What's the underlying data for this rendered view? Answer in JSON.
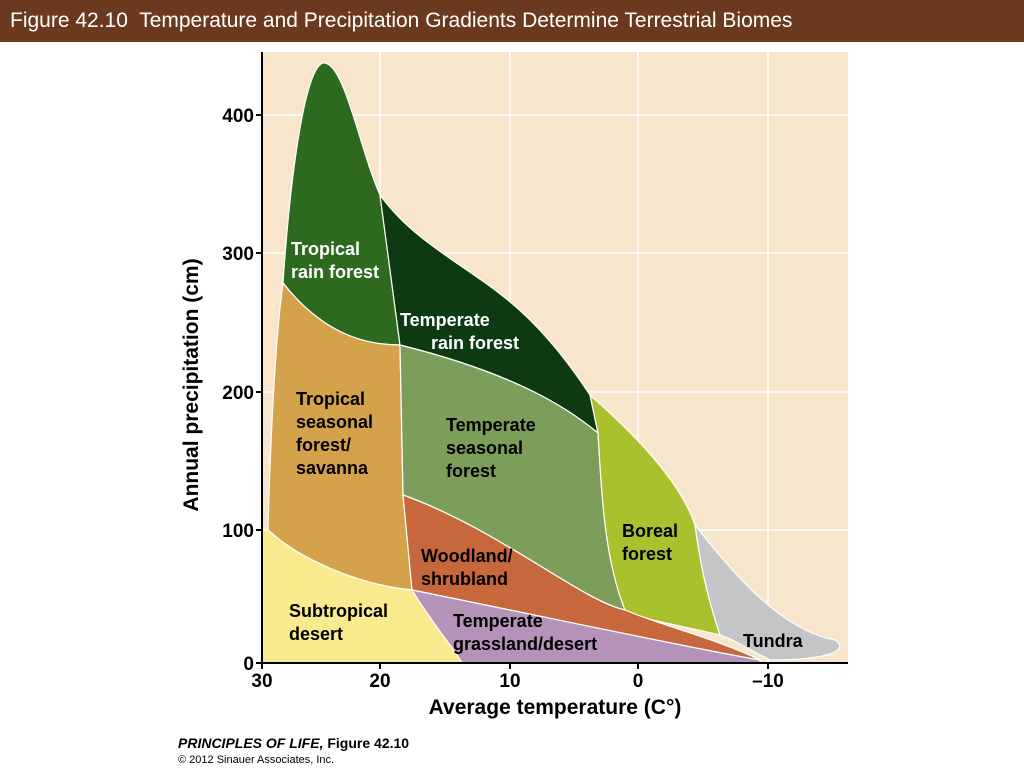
{
  "header": {
    "title": "Figure 42.10  Temperature and Precipitation Gradients Determine Terrestrial Biomes"
  },
  "figure": {
    "x_axis": {
      "label": "Average temperature (C°)",
      "ticks": [
        "30",
        "20",
        "10",
        "0",
        "–10"
      ]
    },
    "y_axis": {
      "label": "Annual precipitation (cm)",
      "ticks": [
        "0",
        "100",
        "200",
        "300",
        "400"
      ]
    },
    "biomes": [
      {
        "lines": [
          "Tropical",
          "rain forest"
        ]
      },
      {
        "lines": [
          "Temperate",
          "rain forest"
        ]
      },
      {
        "lines": [
          "Tropical",
          "seasonal",
          "forest/",
          "savanna"
        ]
      },
      {
        "lines": [
          "Temperate",
          "seasonal",
          "forest"
        ]
      },
      {
        "lines": [
          "Boreal",
          "forest"
        ]
      },
      {
        "lines": [
          "Woodland/",
          "shrubland"
        ]
      },
      {
        "lines": [
          "Subtropical",
          "desert"
        ]
      },
      {
        "lines": [
          "Temperate",
          "grassland/desert"
        ]
      },
      {
        "lines": [
          "Tundra"
        ]
      }
    ]
  },
  "credit": {
    "book": "PRINCIPLES OF LIFE,",
    "figure": "Figure 42.10",
    "copyright": "© 2012 Sinauer Associates, Inc."
  }
}
